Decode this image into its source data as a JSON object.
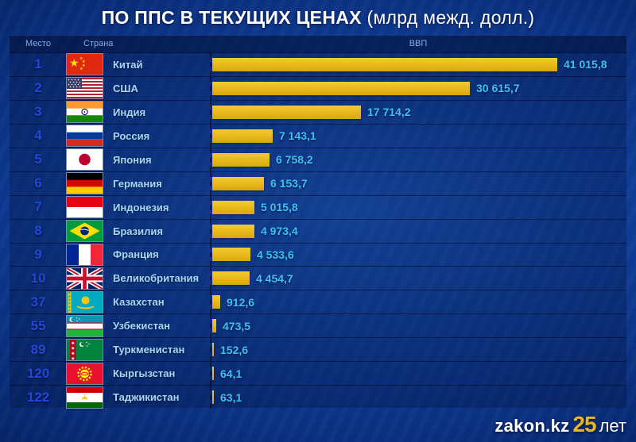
{
  "title": {
    "main": "ПО ППС В ТЕКУЩИХ ЦЕНАХ",
    "sub": "(млрд межд. долл.)"
  },
  "table_headers": {
    "rank": "Место",
    "country": "Страна",
    "gdp": "ВВП"
  },
  "chart_data": {
    "type": "bar",
    "orientation": "horizontal",
    "title": "ПО ППС В ТЕКУЩИХ ЦЕНАХ (млрд межд. долл.)",
    "unit": "млрд межд. долл.",
    "xlim": [
      0,
      41015.8
    ],
    "columns": [
      "Место",
      "Страна",
      "ВВП"
    ],
    "rows": [
      {
        "rank": "1",
        "country": "Китай",
        "flag": "cn",
        "value": 41015.8,
        "value_label": "41 015,8"
      },
      {
        "rank": "2",
        "country": "США",
        "flag": "us",
        "value": 30615.7,
        "value_label": "30 615,7"
      },
      {
        "rank": "3",
        "country": "Индия",
        "flag": "in",
        "value": 17714.2,
        "value_label": "17 714,2"
      },
      {
        "rank": "4",
        "country": "Россия",
        "flag": "ru",
        "value": 7143.1,
        "value_label": "7 143,1"
      },
      {
        "rank": "5",
        "country": "Япония",
        "flag": "jp",
        "value": 6758.2,
        "value_label": "6 758,2"
      },
      {
        "rank": "6",
        "country": "Германия",
        "flag": "de",
        "value": 6153.7,
        "value_label": "6 153,7"
      },
      {
        "rank": "7",
        "country": "Индонезия",
        "flag": "id",
        "value": 5015.8,
        "value_label": "5 015,8"
      },
      {
        "rank": "8",
        "country": "Бразилия",
        "flag": "br",
        "value": 4973.4,
        "value_label": "4 973,4"
      },
      {
        "rank": "9",
        "country": "Франция",
        "flag": "fr",
        "value": 4533.6,
        "value_label": "4 533,6"
      },
      {
        "rank": "10",
        "country": "Великобритания",
        "flag": "gb",
        "value": 4454.7,
        "value_label": "4 454,7"
      },
      {
        "rank": "37",
        "country": "Казахстан",
        "flag": "kz",
        "value": 912.6,
        "value_label": "912,6"
      },
      {
        "rank": "55",
        "country": "Узбекистан",
        "flag": "uz",
        "value": 473.5,
        "value_label": "473,5"
      },
      {
        "rank": "89",
        "country": "Туркменистан",
        "flag": "tm",
        "value": 152.6,
        "value_label": "152,6"
      },
      {
        "rank": "120",
        "country": "Кыргызстан",
        "flag": "kg",
        "value": 64.1,
        "value_label": "64,1"
      },
      {
        "rank": "122",
        "country": "Таджикистан",
        "flag": "tj",
        "value": 63.1,
        "value_label": "63,1"
      }
    ]
  },
  "footer": {
    "brand": "zakon.kz",
    "anniversary_number": "25",
    "anniversary_suffix": "лет"
  },
  "colors": {
    "bar": "#E7B71B",
    "value": "#3EC1F3",
    "rank": "#2347DC",
    "country": "#A6D8F6",
    "header": "#7FB0E6",
    "title": "#FFFFFF",
    "footer_accent": "#E8B820",
    "background_dark": "#041A4E",
    "background_mid": "#0E3C96",
    "background_light": "#1A57BD"
  }
}
